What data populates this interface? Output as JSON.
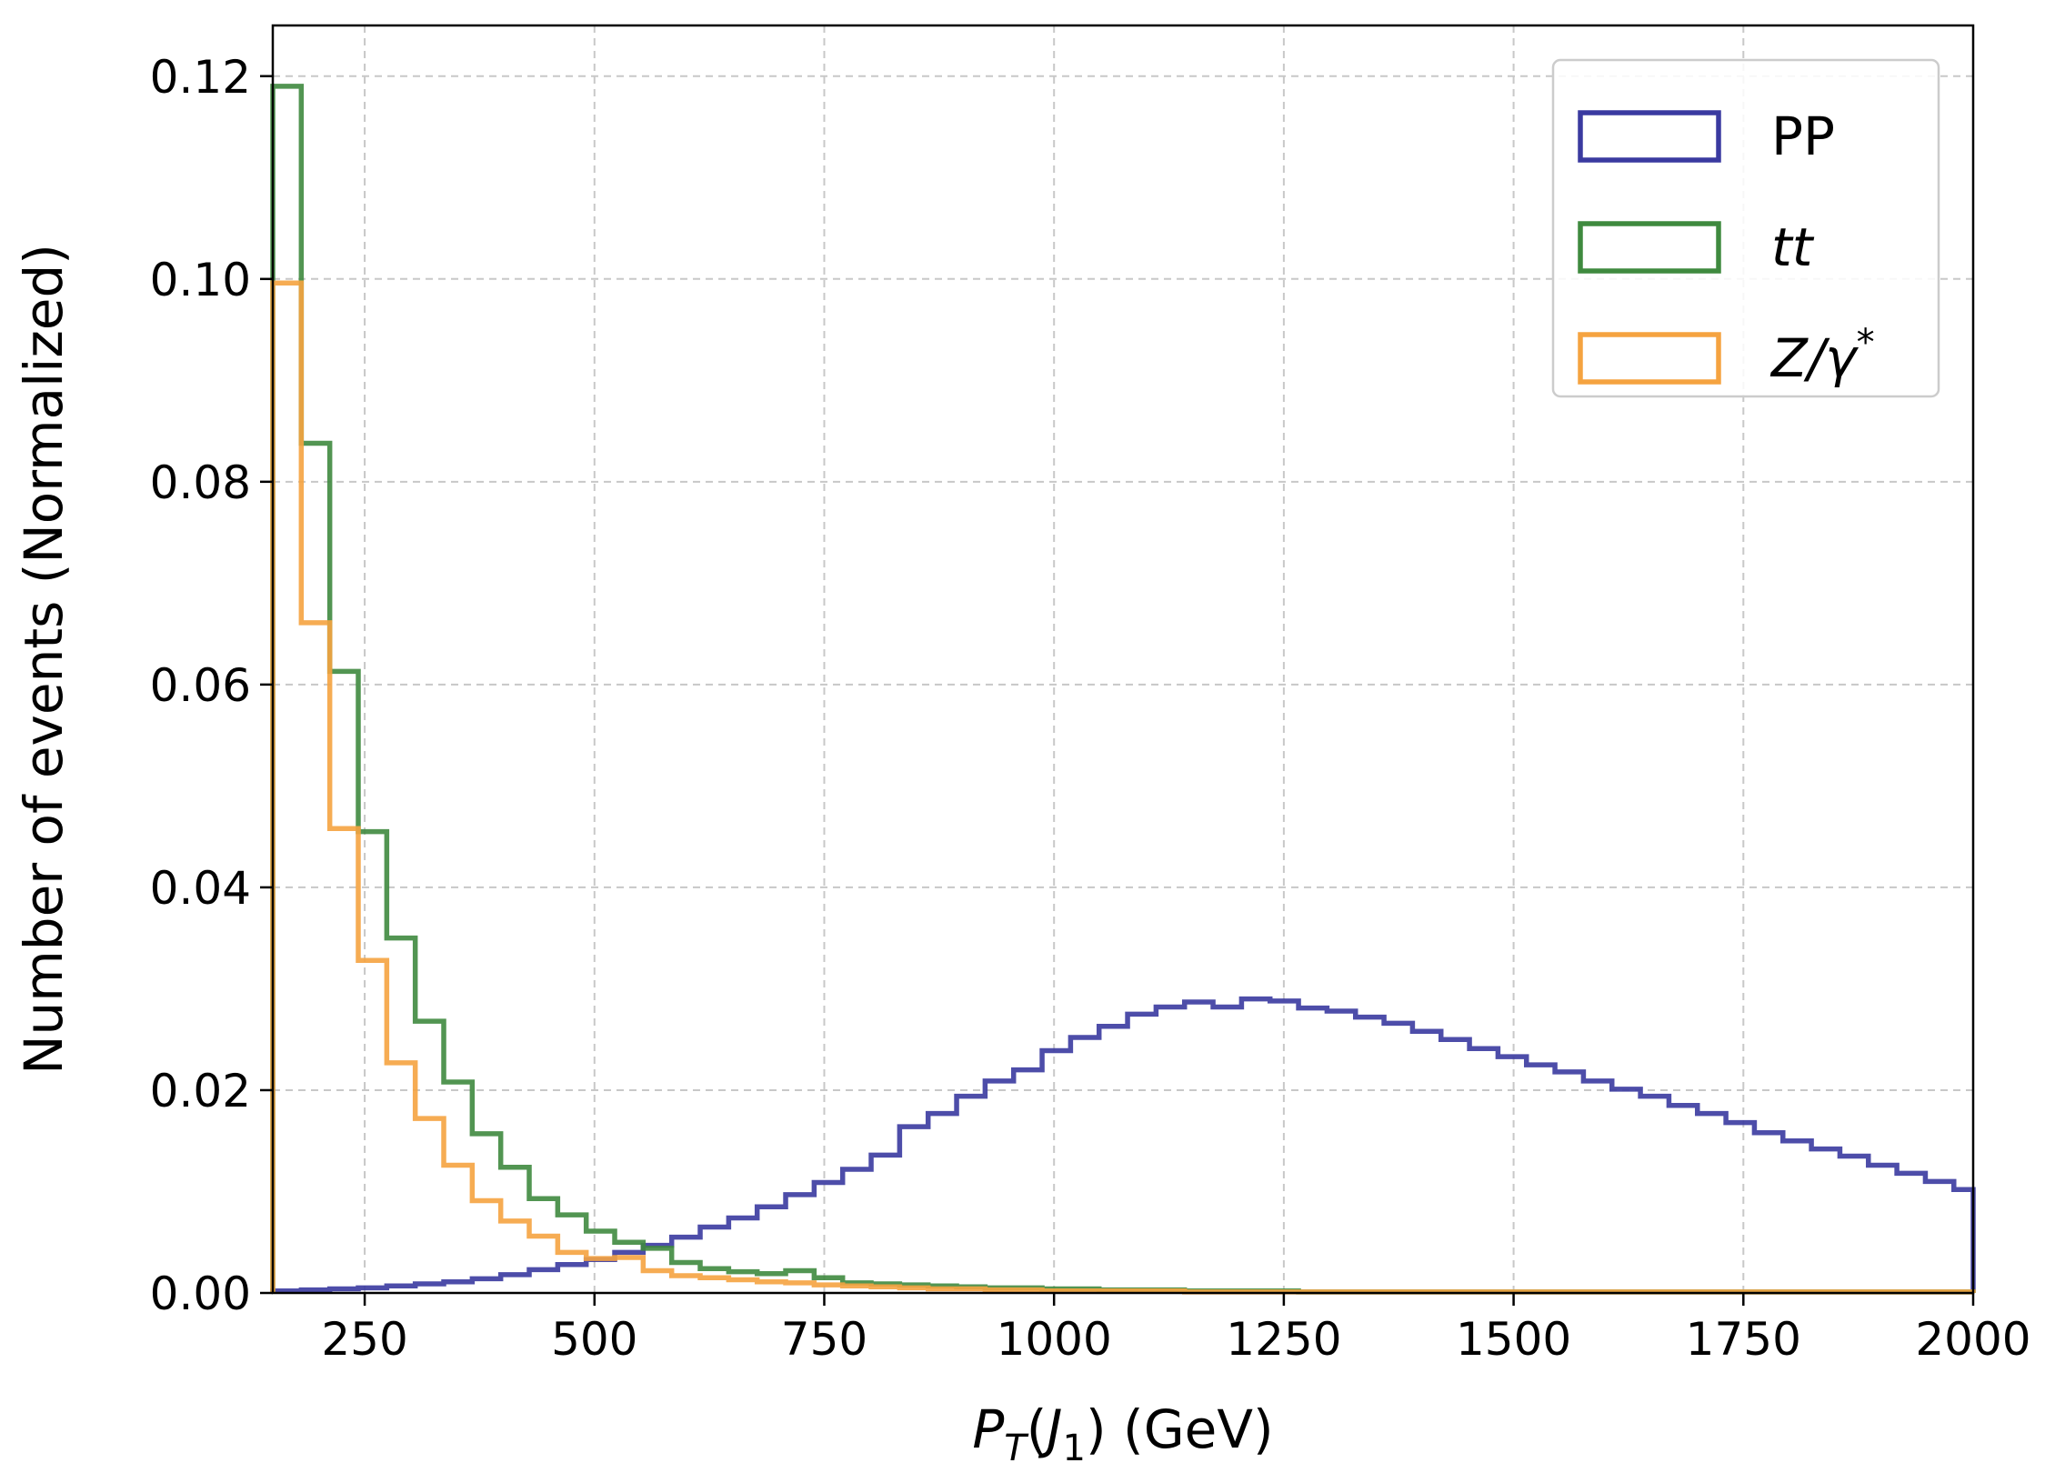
{
  "chart_data": {
    "type": "step-histogram",
    "xlabel": "P_T(J_1) (GeV)",
    "xlabel_parts": {
      "main": "P",
      "sub": "T",
      "open": "(",
      "jet": "J",
      "jet_sub": "1",
      "close": ")",
      "unit": " (GeV)"
    },
    "ylabel": "Number of events (Normalized)",
    "xlim": [
      150,
      2000
    ],
    "ylim": [
      0,
      0.125
    ],
    "xticks": [
      250,
      500,
      750,
      1000,
      1250,
      1500,
      1750,
      2000
    ],
    "yticks": [
      0.0,
      0.02,
      0.04,
      0.06,
      0.08,
      0.1,
      0.12
    ],
    "xtick_labels": [
      "250",
      "500",
      "750",
      "1000",
      "1250",
      "1500",
      "1750",
      "2000"
    ],
    "ytick_labels": [
      "0.00",
      "0.02",
      "0.04",
      "0.06",
      "0.08",
      "0.10",
      "0.12"
    ],
    "grid": true,
    "legend_position": "top-right",
    "series": [
      {
        "name": "PP",
        "label_main": "PP",
        "label_sup": "",
        "color": "#3a3aa0",
        "bin_edges": [
          150,
          181,
          212,
          243,
          274,
          305,
          336,
          367,
          398,
          429,
          460,
          491,
          522,
          553,
          584,
          615,
          646,
          677,
          708,
          739,
          770,
          801,
          832,
          863,
          894,
          925,
          956,
          987,
          1018,
          1049,
          1080,
          1111,
          1142,
          1173,
          1204,
          1235,
          1266,
          1297,
          1328,
          1359,
          1390,
          1421,
          1452,
          1483,
          1514,
          1545,
          1576,
          1607,
          1638,
          1669,
          1700,
          1731,
          1762,
          1793,
          1824,
          1855,
          1886,
          1917,
          1948,
          1979,
          2000
        ],
        "values": [
          0.0002,
          0.0003,
          0.0004,
          0.0005,
          0.0007,
          0.0009,
          0.0011,
          0.0014,
          0.0018,
          0.0023,
          0.0028,
          0.0033,
          0.004,
          0.0047,
          0.0055,
          0.0065,
          0.0074,
          0.0085,
          0.0097,
          0.0109,
          0.0122,
          0.0136,
          0.0164,
          0.0177,
          0.0194,
          0.0209,
          0.022,
          0.0239,
          0.0252,
          0.0263,
          0.0275,
          0.0282,
          0.0287,
          0.0282,
          0.029,
          0.0288,
          0.0281,
          0.0278,
          0.0272,
          0.0266,
          0.0258,
          0.025,
          0.0241,
          0.0233,
          0.0225,
          0.0218,
          0.0209,
          0.0201,
          0.0194,
          0.0185,
          0.0177,
          0.0168,
          0.0158,
          0.015,
          0.0142,
          0.0135,
          0.0126,
          0.0118,
          0.011,
          0.0102,
          0.0092
        ]
      },
      {
        "name": "tt",
        "label_main": "tt",
        "label_sup": "",
        "color": "#3f8a3f",
        "bin_edges": [
          150,
          181,
          212,
          243,
          274,
          305,
          336,
          367,
          398,
          429,
          460,
          491,
          522,
          553,
          584,
          615,
          646,
          677,
          708,
          739,
          770,
          801,
          832,
          863,
          894,
          925,
          956,
          987,
          1018,
          1049,
          1080,
          1111,
          1142,
          1173,
          1204,
          1235,
          1266,
          1297,
          1328,
          1359,
          1390,
          1421,
          1452,
          1483,
          1514,
          1545,
          1576,
          1607,
          1638,
          1669,
          1700,
          1731,
          1762,
          1793,
          1824,
          1855,
          1886,
          1917,
          1948,
          1979,
          2000
        ],
        "values": [
          0.119,
          0.0838,
          0.0613,
          0.0455,
          0.035,
          0.0268,
          0.0208,
          0.0157,
          0.0124,
          0.0093,
          0.0077,
          0.0061,
          0.005,
          0.0044,
          0.003,
          0.0024,
          0.0021,
          0.0019,
          0.0022,
          0.0015,
          0.001,
          0.0009,
          0.0008,
          0.0007,
          0.0006,
          0.0005,
          0.0005,
          0.0004,
          0.0004,
          0.0003,
          0.0003,
          0.0003,
          0.0002,
          0.0002,
          0.0002,
          0.0002,
          0.0001,
          0.0001,
          0.0001,
          0.0001,
          0.0001,
          0.0001,
          0.0001,
          0.0001,
          0.0001,
          0.0001,
          0.0001,
          0.0001,
          0.0001,
          0.0001,
          0.0001,
          0.0001,
          0.0001,
          0.0001,
          0.0001,
          0.0001,
          0.0001,
          0.0001,
          0.0001,
          0.0001,
          0.0001
        ]
      },
      {
        "name": "Z/γ*",
        "label_main": "Z/γ",
        "label_sup": "*",
        "color": "#f5a340",
        "bin_edges": [
          150,
          181,
          212,
          243,
          274,
          305,
          336,
          367,
          398,
          429,
          460,
          491,
          522,
          553,
          584,
          615,
          646,
          677,
          708,
          739,
          770,
          801,
          832,
          863,
          894,
          925,
          956,
          987,
          1018,
          1049,
          1080,
          1111,
          1142,
          1173,
          1204,
          1235,
          1266,
          1297,
          1328,
          1359,
          1390,
          1421,
          1452,
          1483,
          1514,
          1545,
          1576,
          1607,
          1638,
          1669,
          1700,
          1731,
          1762,
          1793,
          1824,
          1855,
          1886,
          1917,
          1948,
          1979,
          2000
        ],
        "values": [
          0.0996,
          0.0661,
          0.0458,
          0.0328,
          0.0227,
          0.0172,
          0.0126,
          0.0091,
          0.0071,
          0.0056,
          0.004,
          0.0034,
          0.0035,
          0.0022,
          0.0017,
          0.0015,
          0.0013,
          0.0011,
          0.001,
          0.0008,
          0.0007,
          0.0006,
          0.0005,
          0.0004,
          0.0004,
          0.0003,
          0.0003,
          0.0002,
          0.0002,
          0.0002,
          0.0002,
          0.0002,
          0.0001,
          0.0001,
          0.0001,
          0.0001,
          0.0001,
          0.0001,
          0.0001,
          0.0001,
          0.0001,
          0.0001,
          0.0001,
          0.0001,
          0.0001,
          0.0001,
          0.0001,
          0.0001,
          0.0001,
          0.0001,
          0.0001,
          0.0001,
          0.0001,
          0.0001,
          0.0001,
          0.0001,
          0.0001,
          0.0001,
          0.0001,
          0.0001,
          0.0001
        ]
      }
    ]
  }
}
